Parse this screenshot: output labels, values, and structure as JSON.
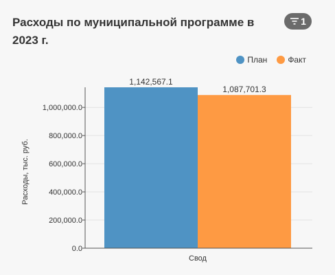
{
  "header": {
    "title": "Расходы по муниципальной программе в 2023 г.",
    "filter_count": "1",
    "filter_icon": "filter-icon"
  },
  "chart_data": {
    "type": "bar",
    "categories": [
      "Свод"
    ],
    "series": [
      {
        "name": "План",
        "color": "#4f93c4",
        "values": [
          1142567.1
        ]
      },
      {
        "name": "Факт",
        "color": "#fe9a43",
        "values": [
          1087701.3
        ]
      }
    ],
    "data_labels": [
      "1,142,567.1",
      "1,087,701.3"
    ],
    "ylabel": "Расходы, тыс. руб.",
    "xlabel": "",
    "ylim": [
      0,
      1142567.1
    ],
    "yticks": [
      0,
      200000,
      400000,
      600000,
      800000,
      1000000
    ],
    "ytick_labels": [
      "0.0",
      "200,000.0",
      "400,000.0",
      "600,000.0",
      "800,000.0",
      "1,000,000.0"
    ],
    "legend_position": "top-right",
    "grid": true
  }
}
